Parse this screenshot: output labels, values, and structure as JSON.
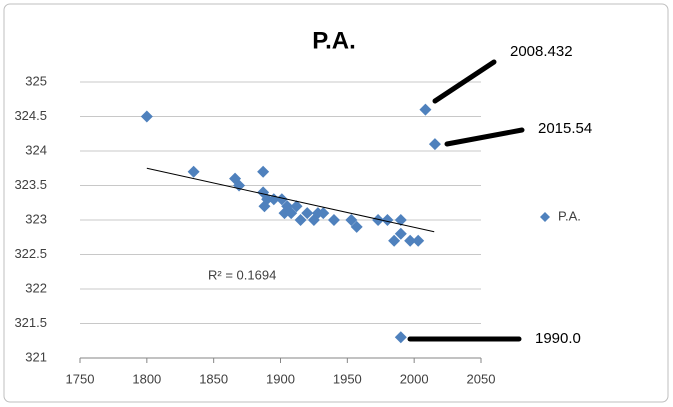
{
  "chart_data": {
    "type": "scatter",
    "title": "P.A.",
    "series": [
      {
        "name": "P.A.",
        "color": "#4f81bd",
        "x": [
          1800,
          1835,
          1866,
          1869,
          1887,
          1887,
          1888,
          1890,
          1895,
          1901,
          1903,
          1905,
          1908,
          1912,
          1915,
          1920,
          1925,
          1928,
          1932,
          1940,
          1953,
          1957,
          1973,
          1980,
          1985,
          1990,
          1990,
          1997,
          2003,
          2008.432,
          2015.54,
          1990.0
        ],
        "values": [
          324.5,
          323.7,
          323.6,
          323.5,
          323.7,
          323.4,
          323.2,
          323.3,
          323.3,
          323.3,
          323.1,
          323.2,
          323.1,
          323.2,
          323.0,
          323.1,
          323.0,
          323.1,
          323.1,
          323.0,
          323.0,
          322.9,
          323.0,
          323.0,
          322.7,
          323.0,
          322.8,
          322.7,
          322.7,
          324.6,
          324.1,
          321.3
        ]
      }
    ],
    "trendline": {
      "x": [
        1800,
        2015
      ],
      "values": [
        323.75,
        322.83
      ],
      "label": "R² = 0.1694",
      "color": "#000000"
    },
    "annotations": [
      {
        "text": "2008.432"
      },
      {
        "text": "2015.54"
      },
      {
        "text": "1990.0"
      }
    ],
    "xlim": [
      1750,
      2050
    ],
    "xticks": [
      1750,
      1800,
      1850,
      1900,
      1950,
      2000,
      2050
    ],
    "ylim": [
      321,
      325
    ],
    "yticks": [
      321,
      321.5,
      322,
      322.5,
      323,
      323.5,
      324,
      324.5,
      325
    ],
    "grid": true,
    "legend": "right"
  }
}
